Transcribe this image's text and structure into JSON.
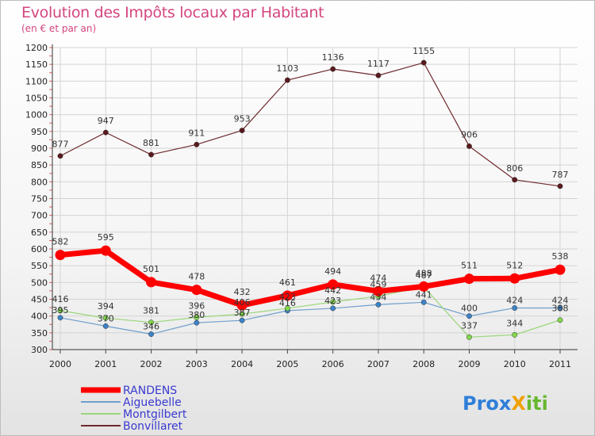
{
  "title": "Evolution des Impôts locaux par Habitant",
  "subtitle": "(en € et par an)",
  "logo_text": "Prox",
  "logo_text2": "iti",
  "chart_data": {
    "type": "line",
    "title": "Evolution des Impôts locaux par Habitant",
    "subtitle": "(en € et par an)",
    "xlabel": "",
    "ylabel": "",
    "ylim": [
      300,
      1200
    ],
    "grid": true,
    "legend_position": "bottom-left",
    "categories": [
      "2000",
      "2001",
      "2002",
      "2003",
      "2004",
      "2005",
      "2006",
      "2007",
      "2008",
      "2009",
      "2010",
      "2011"
    ],
    "yticks": [
      300,
      350,
      400,
      450,
      500,
      550,
      600,
      650,
      700,
      750,
      800,
      850,
      900,
      950,
      1000,
      1050,
      1100,
      1150,
      1200
    ],
    "series": [
      {
        "name": "Bonvillaret",
        "color": "#6e2a2e",
        "marker": "#5a1a1e",
        "values": [
          877,
          947,
          881,
          911,
          953,
          1103,
          1136,
          1117,
          1155,
          906,
          806,
          787
        ]
      },
      {
        "name": "Aiguebelle",
        "color": "#6f9fcc",
        "marker": "#3d83c6",
        "values": [
          395,
          370,
          346,
          380,
          387,
          416,
          423,
          434,
          441,
          400,
          424,
          424
        ]
      },
      {
        "name": "Montgilbert",
        "color": "#9bd67a",
        "marker": "#82d84c",
        "values": [
          416,
          394,
          381,
          396,
          406,
          423,
          442,
          459,
          487,
          337,
          344,
          388
        ]
      },
      {
        "name": "RANDENS",
        "color": "#ff0000",
        "marker": "#ff0000",
        "values": [
          582,
          595,
          501,
          478,
          432,
          461,
          494,
          474,
          488,
          511,
          512,
          538
        ]
      }
    ],
    "legend": [
      "RANDENS",
      "Aiguebelle",
      "Montgilbert",
      "Bonvillaret"
    ]
  }
}
